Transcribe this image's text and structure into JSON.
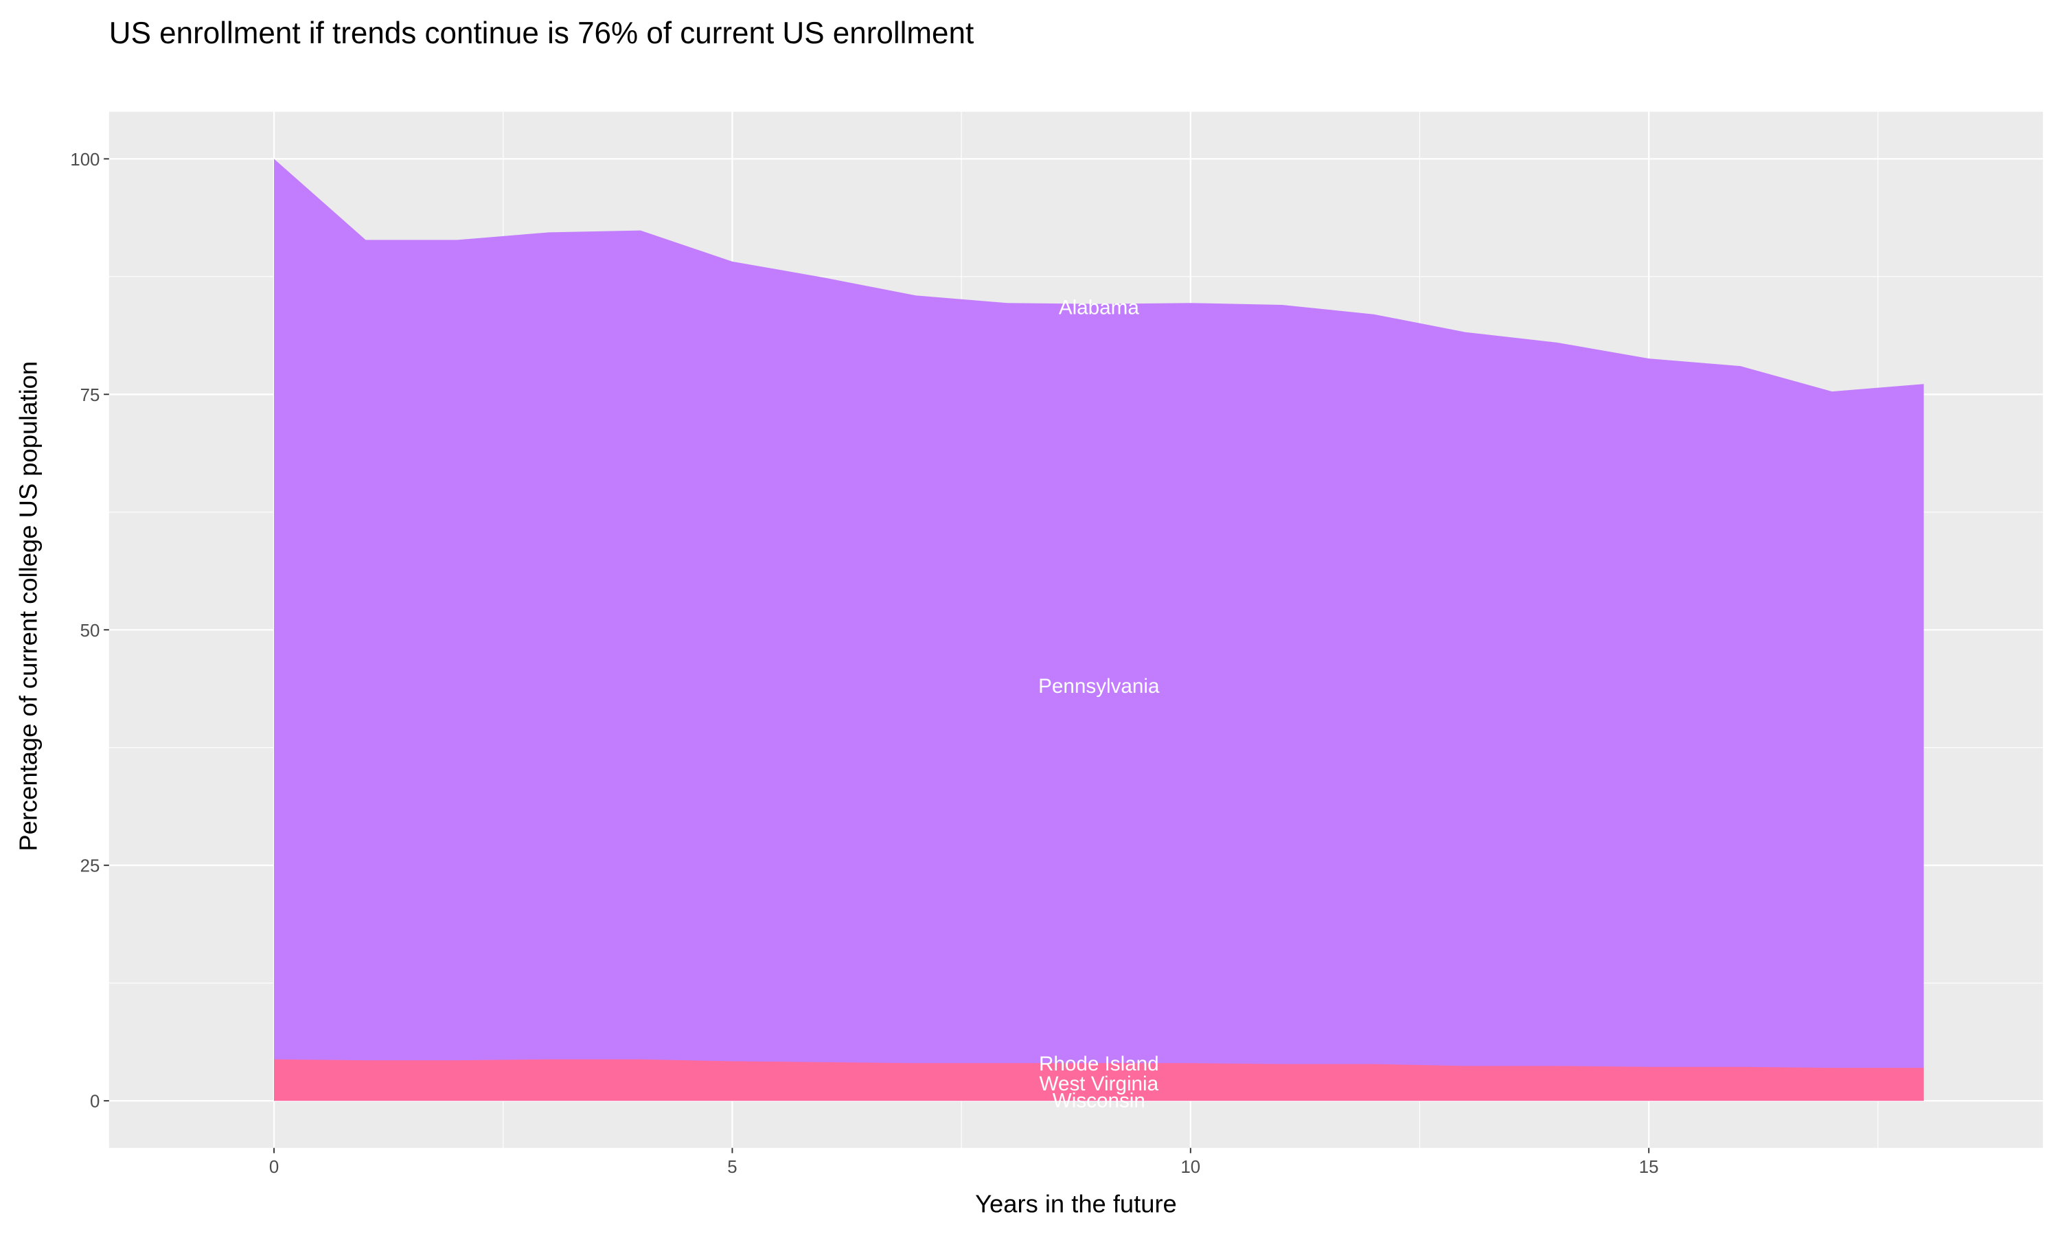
{
  "chart_data": {
    "type": "area",
    "stacked": true,
    "title": "US enrollment if trends continue is 76% of current US enrollment",
    "xlabel": "Years in the future",
    "ylabel": "Percentage of current college US population",
    "xlim": [
      -1.8,
      19.3
    ],
    "ylim": [
      -5,
      105
    ],
    "x_ticks": [
      0,
      5,
      10,
      15
    ],
    "y_ticks": [
      0,
      25,
      50,
      75,
      100
    ],
    "grid": true,
    "background": "#EBEBEB",
    "x": [
      0,
      1,
      2,
      3,
      4,
      5,
      6,
      7,
      8,
      9,
      10,
      11,
      12,
      13,
      14,
      15,
      16,
      17,
      18
    ],
    "series": [
      {
        "color": "#FF6A9C",
        "values": [
          4.4,
          4.3,
          4.3,
          4.4,
          4.4,
          4.2,
          4.1,
          4.0,
          4.0,
          4.0,
          4.0,
          3.9,
          3.9,
          3.7,
          3.7,
          3.6,
          3.6,
          3.5,
          3.5
        ]
      },
      {
        "color": "#C27DFE",
        "values": [
          100,
          91.4,
          91.4,
          92.2,
          92.4,
          89.1,
          87.4,
          85.5,
          84.7,
          84.6,
          84.7,
          84.5,
          83.5,
          81.6,
          80.5,
          78.8,
          78.0,
          75.3,
          76.1
        ]
      }
    ],
    "annotations": [
      {
        "text": "Alabama",
        "x": 9,
        "y": 84.2
      },
      {
        "text": "Pennsylvania",
        "x": 9,
        "y": 44
      },
      {
        "text": "Rhode Island",
        "x": 9,
        "y": 3.9
      },
      {
        "text": "West Virginia",
        "x": 9,
        "y": 1.8
      },
      {
        "text": "Wisconsin",
        "x": 9,
        "y": 0
      }
    ]
  }
}
